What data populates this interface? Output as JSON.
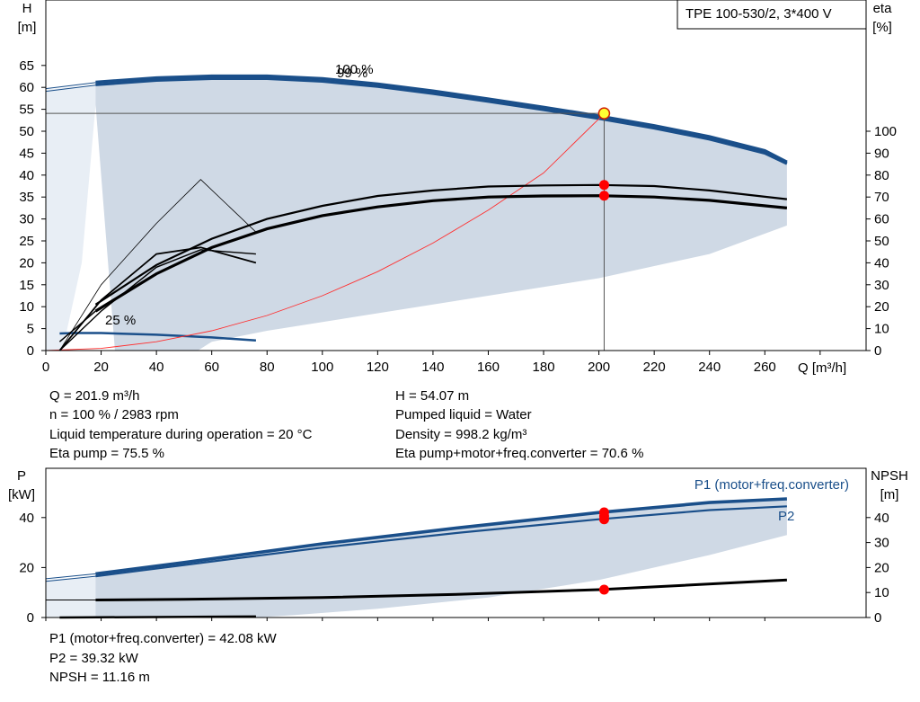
{
  "top_chart": {
    "title_box": "TPE 100-530/2, 3*400 V",
    "y_left_label": [
      "H",
      "[m]"
    ],
    "y_right_label": [
      "eta",
      "[%]"
    ],
    "x_label": "Q [m³/h]",
    "x_ticks": [
      "0",
      "20",
      "40",
      "60",
      "80",
      "100",
      "120",
      "140",
      "160",
      "180",
      "200",
      "220",
      "240",
      "260"
    ],
    "y_left_ticks": [
      "0",
      "5",
      "10",
      "15",
      "20",
      "25",
      "30",
      "35",
      "40",
      "45",
      "50",
      "55",
      "60",
      "65"
    ],
    "y_right_ticks": [
      "0",
      "10",
      "20",
      "30",
      "40",
      "50",
      "60",
      "70",
      "80",
      "90",
      "100"
    ],
    "speed_labels": [
      "100 %",
      "99 %",
      "25 %"
    ]
  },
  "top_info": {
    "q": "Q = 201.9 m³/h",
    "n": "n = 100 % / 2983 rpm",
    "liquid_temp": "Liquid temperature during operation = 20 °C",
    "eta_pump": "Eta pump = 75.5 %",
    "h": "H = 54.07 m",
    "pumped_liquid": "Pumped liquid = Water",
    "density": "Density = 998.2 kg/m³",
    "eta_total": "Eta pump+motor+freq.converter = 70.6 %"
  },
  "bottom_chart": {
    "y_left_label": [
      "P",
      "[kW]"
    ],
    "y_right_label": [
      "NPSH",
      "[m]"
    ],
    "y_left_ticks": [
      "0",
      "20",
      "40"
    ],
    "y_right_ticks": [
      "0",
      "10",
      "20",
      "30",
      "40"
    ],
    "legend_p1": "P1 (motor+freq.converter)",
    "legend_p2": "P2"
  },
  "bottom_info": {
    "p1": "P1 (motor+freq.converter) = 42.08 kW",
    "p2": "P2 = 39.32 kW",
    "npsh": "NPSH = 11.16 m"
  },
  "colors": {
    "curve_blue": "#1a4f8a",
    "area_fill": "#cfd9e5",
    "area_light": "#e8eef5",
    "system_curve": "#ff3030",
    "marker_red": "#ff0000",
    "duty_point_fill": "#ffff33"
  },
  "chart_data": [
    {
      "type": "line",
      "title": "TPE 100-530/2, 3*400 V",
      "xlabel": "Q [m³/h]",
      "ylabel": "H [m]",
      "y2label": "eta [%]",
      "xlim": [
        0,
        280
      ],
      "ylim": [
        0,
        70
      ],
      "y2lim": [
        0,
        100
      ],
      "grid": false,
      "series": [
        {
          "name": "100 %",
          "axis": "H",
          "x": [
            18,
            40,
            60,
            80,
            100,
            120,
            140,
            160,
            180,
            200,
            220,
            240,
            260,
            268
          ],
          "y": [
            61.2,
            62.2,
            62.6,
            62.6,
            62.0,
            60.8,
            59.2,
            57.4,
            55.5,
            53.5,
            51.3,
            48.8,
            45.6,
            43.0
          ]
        },
        {
          "name": "99 %",
          "axis": "H",
          "x": [
            18,
            40,
            60,
            80,
            100,
            120,
            140,
            160,
            180,
            200,
            220,
            240,
            260,
            268
          ],
          "y": [
            60.6,
            61.6,
            62.0,
            62.0,
            61.4,
            60.2,
            58.6,
            56.8,
            54.9,
            52.9,
            50.7,
            48.2,
            45.0,
            42.6
          ]
        },
        {
          "name": "25 %",
          "axis": "H",
          "x": [
            5,
            10,
            20,
            40,
            60,
            76
          ],
          "y": [
            3.9,
            4.0,
            4.0,
            3.6,
            3.0,
            2.3
          ]
        },
        {
          "name": "system curve",
          "axis": "H",
          "x": [
            0,
            20,
            40,
            60,
            80,
            100,
            120,
            140,
            160,
            180,
            202
          ],
          "y": [
            0,
            0.5,
            2.0,
            4.5,
            8.0,
            12.5,
            18.0,
            24.5,
            32.0,
            40.5,
            54.07
          ]
        },
        {
          "name": "eta 100 %",
          "axis": "eta",
          "x": [
            18,
            40,
            60,
            80,
            100,
            120,
            140,
            160,
            180,
            200,
            220,
            240,
            268
          ],
          "y": [
            21.0,
            39.0,
            51.0,
            60.0,
            66.0,
            70.5,
            73.0,
            74.8,
            75.3,
            75.5,
            75.0,
            73.0,
            69.0
          ]
        },
        {
          "name": "eta total 100 %",
          "axis": "eta",
          "x": [
            18,
            40,
            60,
            80,
            100,
            120,
            140,
            160,
            180,
            200,
            220,
            240,
            268
          ],
          "y": [
            18.0,
            35.0,
            47.0,
            55.5,
            61.5,
            65.5,
            68.3,
            70.0,
            70.5,
            70.6,
            70.0,
            68.5,
            65.0
          ]
        }
      ],
      "duty_point": {
        "x": 201.9,
        "y": 54.07,
        "eta_pump": 75.5,
        "eta_total": 70.6
      }
    },
    {
      "type": "line",
      "ylabel": "P [kW]",
      "y2label": "NPSH [m]",
      "xlim": [
        0,
        280
      ],
      "ylim": [
        0,
        50
      ],
      "y2lim": [
        0,
        50
      ],
      "grid": false,
      "series": [
        {
          "name": "P1 (motor+freq.converter)",
          "axis": "P",
          "x": [
            18,
            50,
            100,
            150,
            200,
            240,
            268
          ],
          "y": [
            17.5,
            22.0,
            29.5,
            36.0,
            42.0,
            46.0,
            47.5
          ]
        },
        {
          "name": "P2",
          "axis": "P",
          "x": [
            18,
            50,
            100,
            150,
            200,
            240,
            268
          ],
          "y": [
            16.5,
            21.0,
            28.0,
            34.0,
            39.3,
            43.0,
            44.5
          ]
        },
        {
          "name": "NPSH",
          "axis": "NPSH",
          "x": [
            18,
            50,
            100,
            150,
            200,
            268
          ],
          "y": [
            7.0,
            7.3,
            8.0,
            9.3,
            11.16,
            15.0
          ]
        }
      ],
      "duty_point": {
        "x": 201.9,
        "p1": 42.08,
        "p2": 39.32,
        "npsh": 11.16
      }
    }
  ]
}
